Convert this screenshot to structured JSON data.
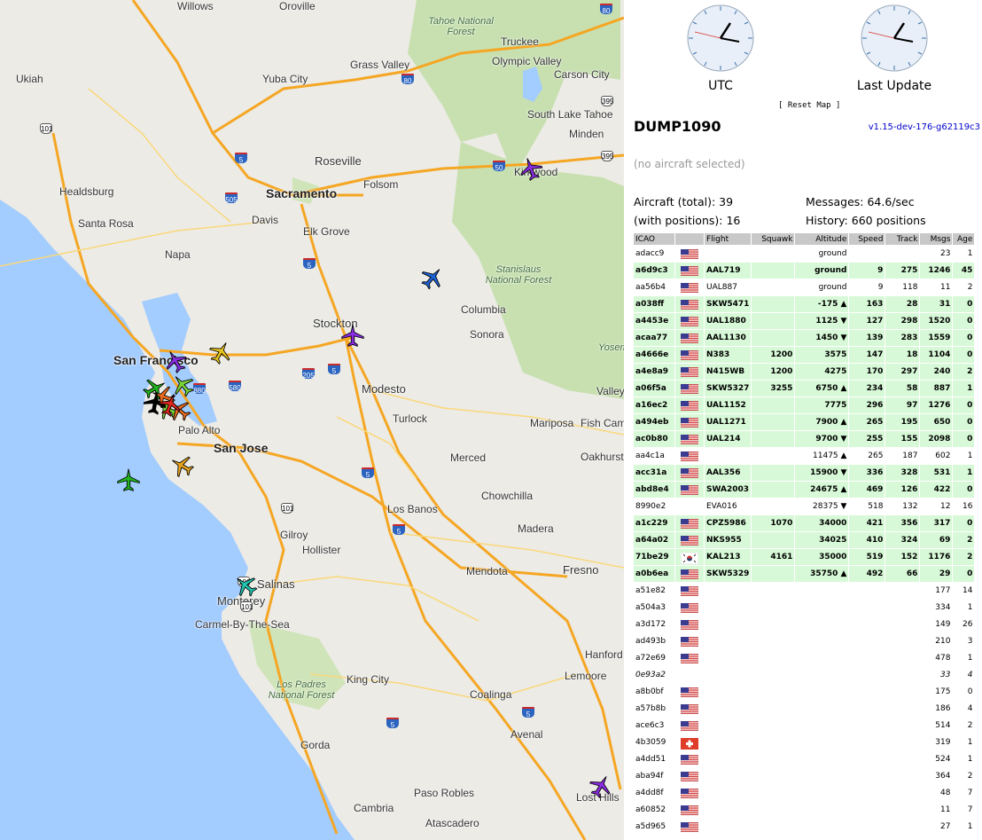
{
  "map": {
    "cities": [
      {
        "name": "Ukiah"
      },
      {
        "name": "Yuba City"
      },
      {
        "name": "Grass Valley"
      },
      {
        "name": "Truckee"
      },
      {
        "name": "Olympic Valley"
      },
      {
        "name": "Carson City"
      },
      {
        "name": "Roseville"
      },
      {
        "name": "Sacramento"
      },
      {
        "name": "Folsom"
      },
      {
        "name": "Healdsburg"
      },
      {
        "name": "Santa Rosa"
      },
      {
        "name": "Davis"
      },
      {
        "name": "Napa"
      },
      {
        "name": "Elk Grove"
      },
      {
        "name": "South Lake Tahoe"
      },
      {
        "name": "Minden"
      },
      {
        "name": "Kirkwood"
      },
      {
        "name": "Stockton"
      },
      {
        "name": "Columbia"
      },
      {
        "name": "Sonora"
      },
      {
        "name": "San Francisco"
      },
      {
        "name": "Modesto"
      },
      {
        "name": "Turlock"
      },
      {
        "name": "Palo Alto"
      },
      {
        "name": "San Jose"
      },
      {
        "name": "Merced"
      },
      {
        "name": "Mariposa"
      },
      {
        "name": "Fish Camp"
      },
      {
        "name": "Oakhurst"
      },
      {
        "name": "Chowchilla"
      },
      {
        "name": "Los Banos"
      },
      {
        "name": "Madera"
      },
      {
        "name": "Gilroy"
      },
      {
        "name": "Hollister"
      },
      {
        "name": "Fresno"
      },
      {
        "name": "Mendota"
      },
      {
        "name": "Salinas"
      },
      {
        "name": "Monterey"
      },
      {
        "name": "Carmel-By-The-Sea"
      },
      {
        "name": "King City"
      },
      {
        "name": "Hanford"
      },
      {
        "name": "Lemoore"
      },
      {
        "name": "Coalinga"
      },
      {
        "name": "Avenal"
      },
      {
        "name": "Gorda"
      },
      {
        "name": "Paso Robles"
      },
      {
        "name": "Lost Hills"
      },
      {
        "name": "Cambria"
      },
      {
        "name": "Atascadero"
      },
      {
        "name": "Willows"
      },
      {
        "name": "Oroville"
      },
      {
        "name": "Valley"
      }
    ],
    "forests": [
      {
        "name": "Tahoe National Forest"
      },
      {
        "name": "Stanislaus National Forest"
      },
      {
        "name": "Los Padres National Forest"
      },
      {
        "name": "Yosemite"
      }
    ],
    "shields": [
      "80",
      "80",
      "101",
      "5",
      "505",
      "50",
      "395",
      "395",
      "5",
      "880",
      "580",
      "205",
      "5",
      "101",
      "5",
      "5",
      "101",
      "5",
      "5",
      "101"
    ]
  },
  "sidebar": {
    "clock_utc_label": "UTC",
    "clock_last_label": "Last Update",
    "reset_map": "[ Reset Map ]",
    "title": "DUMP1090",
    "version": "v1.15-dev-176-g62119c3",
    "no_selection": "(no aircraft selected)",
    "aircraft_total": "Aircraft (total): 39",
    "messages": "Messages: 64.6/sec",
    "with_positions": "(with positions): 16",
    "history": "History: 660 positions"
  },
  "table": {
    "headers": [
      "ICAO",
      "",
      "Flight",
      "Squawk",
      "Altitude",
      "Speed",
      "Track",
      "Msgs",
      "Age"
    ],
    "rows": [
      {
        "icao": "adacc9",
        "flag": "us",
        "flight": "",
        "squawk": "",
        "alt": "ground",
        "speed": "",
        "track": "",
        "msgs": "23",
        "age": "1",
        "cls": ""
      },
      {
        "icao": "a6d9c3",
        "flag": "us",
        "flight": "AAL719",
        "squawk": "",
        "alt": "ground",
        "speed": "9",
        "track": "275",
        "msgs": "1246",
        "age": "45",
        "cls": "pos"
      },
      {
        "icao": "aa56b4",
        "flag": "us",
        "flight": "UAL887",
        "squawk": "",
        "alt": "ground",
        "speed": "9",
        "track": "118",
        "msgs": "11",
        "age": "2",
        "cls": ""
      },
      {
        "icao": "a038ff",
        "flag": "us",
        "flight": "SKW5471",
        "squawk": "",
        "alt": "-175 ▲",
        "speed": "163",
        "track": "28",
        "msgs": "31",
        "age": "0",
        "cls": "pos"
      },
      {
        "icao": "a4453e",
        "flag": "us",
        "flight": "UAL1880",
        "squawk": "",
        "alt": "1125 ▼",
        "speed": "127",
        "track": "298",
        "msgs": "1520",
        "age": "0",
        "cls": "pos"
      },
      {
        "icao": "acaa77",
        "flag": "us",
        "flight": "AAL1130",
        "squawk": "",
        "alt": "1450 ▼",
        "speed": "139",
        "track": "283",
        "msgs": "1559",
        "age": "0",
        "cls": "pos"
      },
      {
        "icao": "a4666e",
        "flag": "us",
        "flight": "N383",
        "squawk": "1200",
        "alt": "3575",
        "speed": "147",
        "track": "18",
        "msgs": "1104",
        "age": "0",
        "cls": "pos"
      },
      {
        "icao": "a4e8a9",
        "flag": "us",
        "flight": "N415WB",
        "squawk": "1200",
        "alt": "4275",
        "speed": "170",
        "track": "297",
        "msgs": "240",
        "age": "2",
        "cls": "pos"
      },
      {
        "icao": "a06f5a",
        "flag": "us",
        "flight": "SKW5327",
        "squawk": "3255",
        "alt": "6750 ▲",
        "speed": "234",
        "track": "58",
        "msgs": "887",
        "age": "1",
        "cls": "pos"
      },
      {
        "icao": "a16ec2",
        "flag": "us",
        "flight": "UAL1152",
        "squawk": "",
        "alt": "7775",
        "speed": "296",
        "track": "97",
        "msgs": "1276",
        "age": "0",
        "cls": "pos"
      },
      {
        "icao": "a494eb",
        "flag": "us",
        "flight": "UAL1271",
        "squawk": "",
        "alt": "7900 ▲",
        "speed": "265",
        "track": "195",
        "msgs": "650",
        "age": "0",
        "cls": "pos"
      },
      {
        "icao": "ac0b80",
        "flag": "us",
        "flight": "UAL214",
        "squawk": "",
        "alt": "9700 ▼",
        "speed": "255",
        "track": "155",
        "msgs": "2098",
        "age": "0",
        "cls": "pos"
      },
      {
        "icao": "aa4c1a",
        "flag": "us",
        "flight": "",
        "squawk": "",
        "alt": "11475 ▲",
        "speed": "265",
        "track": "187",
        "msgs": "602",
        "age": "1",
        "cls": ""
      },
      {
        "icao": "acc31a",
        "flag": "us",
        "flight": "AAL356",
        "squawk": "",
        "alt": "15900 ▼",
        "speed": "336",
        "track": "328",
        "msgs": "531",
        "age": "1",
        "cls": "pos"
      },
      {
        "icao": "abd8e4",
        "flag": "us",
        "flight": "SWA2003",
        "squawk": "",
        "alt": "24675 ▲",
        "speed": "469",
        "track": "126",
        "msgs": "422",
        "age": "0",
        "cls": "pos"
      },
      {
        "icao": "8990e2",
        "flag": "",
        "flight": "EVA016",
        "squawk": "",
        "alt": "28375 ▼",
        "speed": "518",
        "track": "132",
        "msgs": "12",
        "age": "16",
        "cls": ""
      },
      {
        "icao": "a1c229",
        "flag": "us",
        "flight": "CPZ5986",
        "squawk": "1070",
        "alt": "34000",
        "speed": "421",
        "track": "356",
        "msgs": "317",
        "age": "0",
        "cls": "pos"
      },
      {
        "icao": "a64a02",
        "flag": "us",
        "flight": "NKS955",
        "squawk": "",
        "alt": "34025",
        "speed": "410",
        "track": "324",
        "msgs": "69",
        "age": "2",
        "cls": "pos"
      },
      {
        "icao": "71be29",
        "flag": "kr",
        "flight": "KAL213",
        "squawk": "4161",
        "alt": "35000",
        "speed": "519",
        "track": "152",
        "msgs": "1176",
        "age": "2",
        "cls": "pos"
      },
      {
        "icao": "a0b6ea",
        "flag": "us",
        "flight": "SKW5329",
        "squawk": "",
        "alt": "35750 ▲",
        "speed": "492",
        "track": "66",
        "msgs": "29",
        "age": "0",
        "cls": "pos"
      },
      {
        "icao": "a51e82",
        "flag": "us",
        "flight": "",
        "squawk": "",
        "alt": "",
        "speed": "",
        "track": "",
        "msgs": "177",
        "age": "14",
        "cls": ""
      },
      {
        "icao": "a504a3",
        "flag": "us",
        "flight": "",
        "squawk": "",
        "alt": "",
        "speed": "",
        "track": "",
        "msgs": "334",
        "age": "1",
        "cls": ""
      },
      {
        "icao": "a3d172",
        "flag": "us",
        "flight": "",
        "squawk": "",
        "alt": "",
        "speed": "",
        "track": "",
        "msgs": "149",
        "age": "26",
        "cls": ""
      },
      {
        "icao": "ad493b",
        "flag": "us",
        "flight": "",
        "squawk": "",
        "alt": "",
        "speed": "",
        "track": "",
        "msgs": "210",
        "age": "3",
        "cls": ""
      },
      {
        "icao": "a72e69",
        "flag": "us",
        "flight": "",
        "squawk": "",
        "alt": "",
        "speed": "",
        "track": "",
        "msgs": "478",
        "age": "1",
        "cls": ""
      },
      {
        "icao": "0e93a2",
        "flag": "",
        "flight": "",
        "squawk": "",
        "alt": "",
        "speed": "",
        "track": "",
        "msgs": "33",
        "age": "4",
        "cls": "ital"
      },
      {
        "icao": "a8b0bf",
        "flag": "us",
        "flight": "",
        "squawk": "",
        "alt": "",
        "speed": "",
        "track": "",
        "msgs": "175",
        "age": "0",
        "cls": ""
      },
      {
        "icao": "a57b8b",
        "flag": "us",
        "flight": "",
        "squawk": "",
        "alt": "",
        "speed": "",
        "track": "",
        "msgs": "186",
        "age": "4",
        "cls": ""
      },
      {
        "icao": "ace6c3",
        "flag": "us",
        "flight": "",
        "squawk": "",
        "alt": "",
        "speed": "",
        "track": "",
        "msgs": "514",
        "age": "2",
        "cls": ""
      },
      {
        "icao": "4b3059",
        "flag": "ch",
        "flight": "",
        "squawk": "",
        "alt": "",
        "speed": "",
        "track": "",
        "msgs": "319",
        "age": "1",
        "cls": ""
      },
      {
        "icao": "a4dd51",
        "flag": "us",
        "flight": "",
        "squawk": "",
        "alt": "",
        "speed": "",
        "track": "",
        "msgs": "524",
        "age": "1",
        "cls": ""
      },
      {
        "icao": "aba94f",
        "flag": "us",
        "flight": "",
        "squawk": "",
        "alt": "",
        "speed": "",
        "track": "",
        "msgs": "364",
        "age": "2",
        "cls": ""
      },
      {
        "icao": "a4dd8f",
        "flag": "us",
        "flight": "",
        "squawk": "",
        "alt": "",
        "speed": "",
        "track": "",
        "msgs": "48",
        "age": "7",
        "cls": ""
      },
      {
        "icao": "a60852",
        "flag": "us",
        "flight": "",
        "squawk": "",
        "alt": "",
        "speed": "",
        "track": "",
        "msgs": "11",
        "age": "7",
        "cls": ""
      },
      {
        "icao": "a5d965",
        "flag": "us",
        "flight": "",
        "squawk": "",
        "alt": "",
        "speed": "",
        "track": "",
        "msgs": "27",
        "age": "1",
        "cls": ""
      }
    ]
  },
  "colors": {
    "ocean": "#a3ccff",
    "land": "#ecebe6",
    "forest": "#c3dfa8",
    "highway": "#f5a623",
    "row_highlight": "#d7f9d7",
    "header_bg": "#c8c8c8"
  }
}
